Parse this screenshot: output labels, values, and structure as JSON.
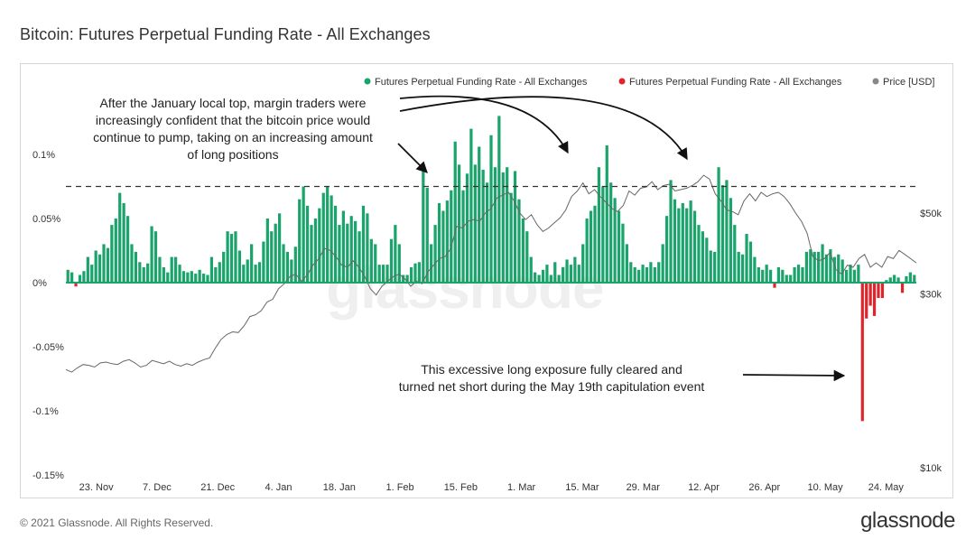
{
  "page": {
    "title": "Bitcoin: Futures Perpetual Funding Rate - All Exchanges",
    "copyright": "© 2021 Glassnode. All Rights Reserved.",
    "logo": "glassnode",
    "watermark": "glassnode"
  },
  "chart_data": {
    "type": "bar",
    "title": "Bitcoin: Futures Perpetual Funding Rate - All Exchanges",
    "legend_position": "top-right",
    "legend": [
      {
        "label": "Futures Perpetual Funding Rate - All Exchanges",
        "color": "#1aa36a",
        "kind": "dot"
      },
      {
        "label": "Futures Perpetual Funding Rate - All Exchanges",
        "color": "#e0242b",
        "kind": "dot"
      },
      {
        "label": "Price [USD]",
        "color": "#888888",
        "kind": "dot"
      }
    ],
    "colors": {
      "positive": "#1aa36a",
      "negative": "#e0242b",
      "price": "#666666",
      "threshold": "#333333"
    },
    "x_start_date": "2020-11-16",
    "x_end_date": "2021-05-31",
    "x_ticks": [
      "23. Nov",
      "7. Dec",
      "21. Dec",
      "4. Jan",
      "18. Jan",
      "1. Feb",
      "15. Feb",
      "1. Mar",
      "15. Mar",
      "29. Mar",
      "12. Apr",
      "26. Apr",
      "10. May",
      "24. May"
    ],
    "y_left": {
      "ticks": [
        "0.1%",
        "0.05%",
        "0%",
        "-0.05%",
        "-0.1%",
        "-0.15%"
      ],
      "values": [
        0.1,
        0.05,
        0,
        -0.05,
        -0.1,
        -0.15
      ],
      "range": [
        -0.15,
        0.12
      ]
    },
    "y_right": {
      "ticks": [
        "$50k",
        "$30k",
        "$10k"
      ],
      "values": [
        50000,
        30000,
        10000
      ],
      "scale": "log"
    },
    "threshold_line": 0.075,
    "funding_rate": [
      0.01,
      0.008,
      -0.003,
      0.006,
      0.009,
      0.02,
      0.014,
      0.025,
      0.022,
      0.03,
      0.027,
      0.045,
      0.05,
      0.07,
      0.062,
      0.052,
      0.03,
      0.024,
      0.016,
      0.012,
      0.015,
      0.044,
      0.04,
      0.02,
      0.012,
      0.008,
      0.02,
      0.02,
      0.014,
      0.009,
      0.008,
      0.009,
      0.007,
      0.01,
      0.007,
      0.006,
      0.02,
      0.012,
      0.016,
      0.024,
      0.04,
      0.038,
      0.04,
      0.025,
      0.014,
      0.018,
      0.03,
      0.014,
      0.016,
      0.032,
      0.05,
      0.04,
      0.046,
      0.054,
      0.03,
      0.024,
      0.018,
      0.028,
      0.065,
      0.075,
      0.06,
      0.045,
      0.05,
      0.058,
      0.07,
      0.075,
      0.068,
      0.06,
      0.045,
      0.056,
      0.046,
      0.052,
      0.048,
      0.04,
      0.06,
      0.054,
      0.034,
      0.03,
      0.014,
      0.014,
      0.014,
      0.034,
      0.045,
      0.03,
      0.006,
      0.006,
      0.012,
      0.015,
      0.016,
      0.09,
      0.074,
      0.03,
      0.045,
      0.062,
      0.056,
      0.064,
      0.072,
      0.11,
      0.092,
      0.072,
      0.085,
      0.12,
      0.092,
      0.106,
      0.088,
      0.078,
      0.115,
      0.09,
      0.13,
      0.086,
      0.09,
      0.07,
      0.087,
      0.065,
      0.05,
      0.04,
      0.02,
      0.008,
      0.006,
      0.01,
      0.014,
      0.006,
      0.016,
      0.006,
      0.012,
      0.018,
      0.014,
      0.02,
      0.014,
      0.03,
      0.05,
      0.056,
      0.06,
      0.09,
      0.075,
      0.107,
      0.078,
      0.066,
      0.056,
      0.046,
      0.03,
      0.016,
      0.012,
      0.01,
      0.014,
      0.012,
      0.016,
      0.012,
      0.016,
      0.03,
      0.052,
      0.08,
      0.065,
      0.058,
      0.062,
      0.058,
      0.064,
      0.056,
      0.045,
      0.04,
      0.035,
      0.025,
      0.024,
      0.09,
      0.076,
      0.08,
      0.066,
      0.045,
      0.024,
      0.022,
      0.038,
      0.032,
      0.02,
      0.012,
      0.01,
      0.014,
      0.01,
      -0.004,
      0.012,
      0.01,
      0.006,
      0.006,
      0.012,
      0.014,
      0.012,
      0.024,
      0.026,
      0.024,
      0.024,
      0.03,
      0.022,
      0.026,
      0.02,
      0.022,
      0.018,
      0.01,
      0.014,
      0.01,
      0.014,
      -0.108,
      -0.028,
      -0.018,
      -0.026,
      -0.012,
      -0.012,
      0.002,
      0.004,
      0.006,
      0.004,
      -0.008,
      0.005,
      0.008,
      0.006
    ],
    "price_usd": [
      18600,
      18300,
      18800,
      19200,
      19100,
      18900,
      19400,
      19500,
      19300,
      19200,
      19600,
      19800,
      19400,
      18900,
      19100,
      19700,
      19500,
      19300,
      19600,
      19200,
      19000,
      19300,
      19100,
      19500,
      19800,
      20000,
      21300,
      22500,
      23200,
      23600,
      23500,
      24500,
      26000,
      26300,
      27000,
      28500,
      29000,
      31000,
      32000,
      33500,
      34000,
      32500,
      33800,
      36000,
      37500,
      40000,
      39500,
      38000,
      36000,
      35500,
      37000,
      35500,
      33500,
      31000,
      29800,
      31500,
      32500,
      33500,
      34000,
      33000,
      31500,
      32500,
      32000,
      34500,
      36000,
      37500,
      38000,
      40000,
      46000,
      45500,
      47500,
      48000,
      47500,
      50000,
      51500,
      55000,
      56000,
      57000,
      54000,
      50000,
      48000,
      49500,
      46500,
      44500,
      45500,
      47000,
      48500,
      51000,
      55500,
      57500,
      60500,
      56500,
      58000,
      55500,
      53500,
      51500,
      50500,
      52500,
      57500,
      56000,
      58500,
      59000,
      61000,
      58000,
      59500,
      60000,
      57500,
      58000,
      58500,
      59500,
      61000,
      63500,
      62000,
      56500,
      54000,
      51000,
      50500,
      49500,
      54000,
      56500,
      54000,
      57000,
      55500,
      56500,
      57000,
      55500,
      53000,
      50000,
      47500,
      44000,
      38000,
      37000,
      37500,
      39000,
      35000,
      34000,
      36000,
      35500,
      37500,
      38500,
      35500,
      36500,
      35500,
      38000,
      37500,
      39500,
      38500,
      37500,
      36500
    ],
    "annotations": [
      {
        "lines": [
          "After the January local top, margin traders were",
          "increasingly confident that the bitcoin price would",
          "continue to pump, taking on an increasing amount",
          "of long positions"
        ]
      },
      {
        "lines": [
          "This excessive long exposure fully cleared and",
          "turned net short during the May 19th capitulation event"
        ]
      }
    ]
  }
}
